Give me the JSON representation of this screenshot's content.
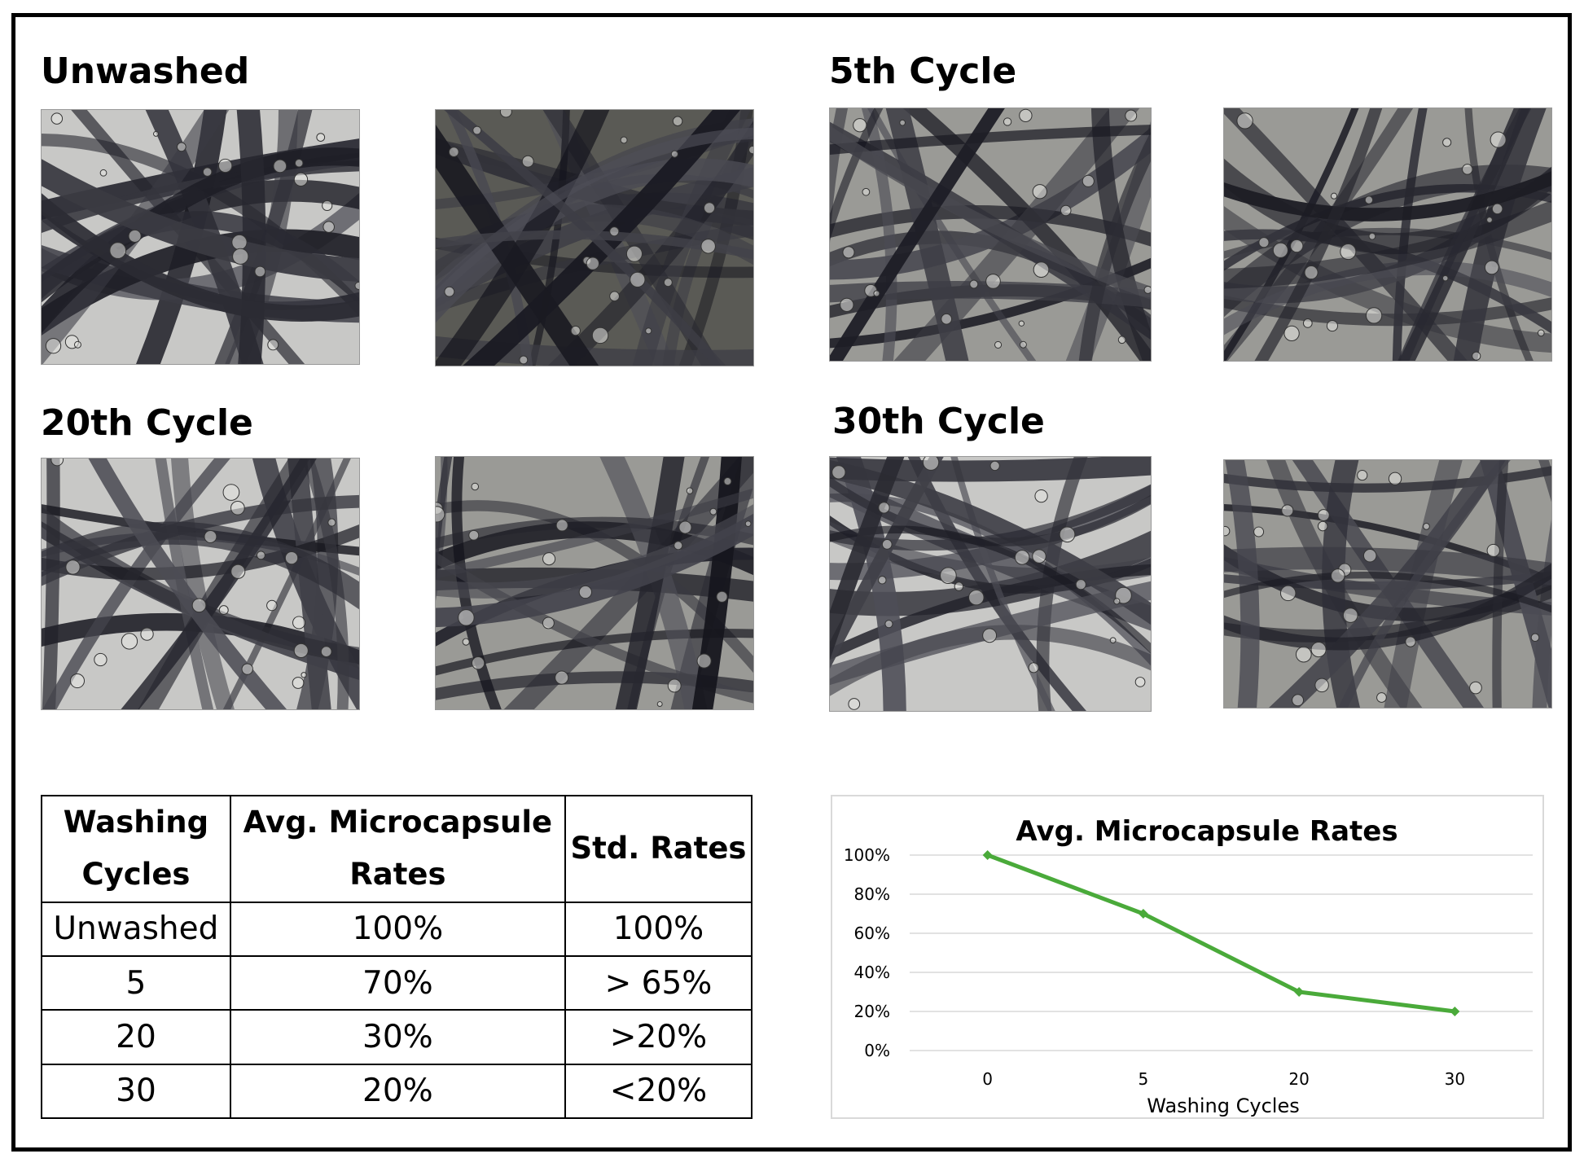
{
  "panels": [
    {
      "title": "Unwashed"
    },
    {
      "title": "5th Cycle"
    },
    {
      "title": "20th Cycle"
    },
    {
      "title": "30th Cycle"
    }
  ],
  "table": {
    "headers": [
      "Washing Cycles",
      "Avg. Microcapsule Rates",
      "Std. Rates"
    ],
    "rows": [
      [
        "Unwashed",
        "100%",
        "100%"
      ],
      [
        "5",
        "70%",
        "> 65%"
      ],
      [
        "20",
        "30%",
        ">20%"
      ],
      [
        "30",
        "20%",
        "<20%"
      ]
    ]
  },
  "chart_data": {
    "type": "line",
    "title": "Avg. Microcapsule Rates",
    "xlabel": "Washing Cycles",
    "ylabel": "",
    "categories": [
      "0",
      "5",
      "20",
      "30"
    ],
    "series": [
      {
        "values": [
          100,
          70,
          30,
          20
        ],
        "color": "#4aaa3a"
      }
    ],
    "yticks": [
      "0%",
      "20%",
      "40%",
      "60%",
      "80%",
      "100%"
    ],
    "ylim": [
      0,
      100
    ],
    "grid": true,
    "legend": "none"
  }
}
